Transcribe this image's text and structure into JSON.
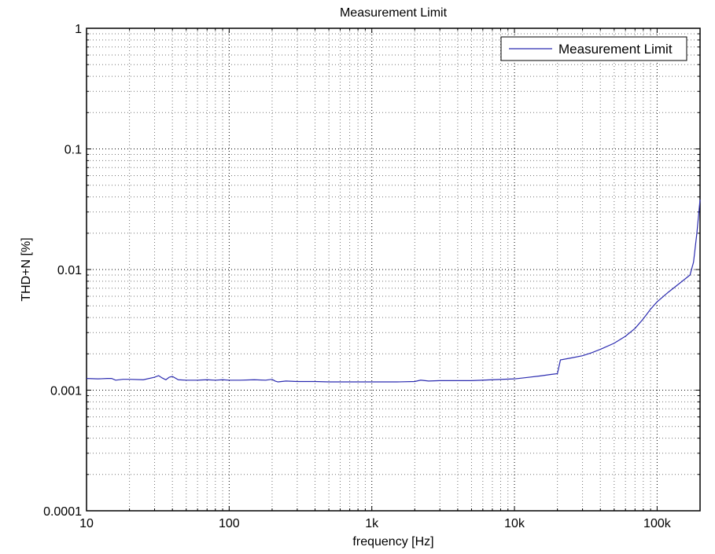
{
  "chart_data": {
    "type": "line",
    "title": "Measurement Limit",
    "xlabel": "frequency [Hz]",
    "ylabel": "THD+N [%]",
    "xscale": "log",
    "yscale": "log",
    "xlim": [
      10,
      200000
    ],
    "ylim": [
      0.0001,
      1
    ],
    "grid": true,
    "legend_position": "top-right",
    "x_tick_labels": [
      "10",
      "100",
      "1k",
      "10k",
      "100k"
    ],
    "x_tick_values": [
      10,
      100,
      1000,
      10000,
      100000
    ],
    "y_tick_labels": [
      "0.0001",
      "0.001",
      "0.01",
      "0.1",
      "1"
    ],
    "y_tick_values": [
      0.0001,
      0.001,
      0.01,
      0.1,
      1
    ],
    "series": [
      {
        "name": "Measurement Limit",
        "color": "#2b2bb0",
        "x": [
          10,
          12,
          14,
          15,
          16,
          18,
          20,
          25,
          30,
          32,
          34,
          36,
          38,
          40,
          44,
          50,
          60,
          70,
          80,
          90,
          100,
          120,
          150,
          180,
          200,
          210,
          220,
          250,
          300,
          400,
          500,
          700,
          1000,
          1500,
          2000,
          2200,
          2500,
          3000,
          4000,
          5000,
          7000,
          10000,
          12000,
          15000,
          18000,
          20000,
          21000,
          25000,
          30000,
          35000,
          40000,
          50000,
          60000,
          70000,
          80000,
          90000,
          100000,
          120000,
          150000,
          170000,
          180000,
          190000,
          200000
        ],
        "y": [
          0.00125,
          0.00124,
          0.00125,
          0.00125,
          0.00121,
          0.00123,
          0.00123,
          0.00122,
          0.00128,
          0.00132,
          0.00126,
          0.00122,
          0.00128,
          0.0013,
          0.00122,
          0.00121,
          0.00121,
          0.00122,
          0.00121,
          0.00122,
          0.00121,
          0.00121,
          0.00122,
          0.00121,
          0.00123,
          0.00119,
          0.00117,
          0.00119,
          0.00118,
          0.00118,
          0.00117,
          0.00117,
          0.00117,
          0.00117,
          0.00118,
          0.00121,
          0.00119,
          0.0012,
          0.0012,
          0.0012,
          0.00122,
          0.00124,
          0.00127,
          0.00131,
          0.00135,
          0.00137,
          0.00178,
          0.00185,
          0.00193,
          0.00205,
          0.00218,
          0.00245,
          0.0028,
          0.00325,
          0.0039,
          0.0047,
          0.0054,
          0.0065,
          0.008,
          0.009,
          0.0115,
          0.02,
          0.038
        ]
      }
    ]
  }
}
